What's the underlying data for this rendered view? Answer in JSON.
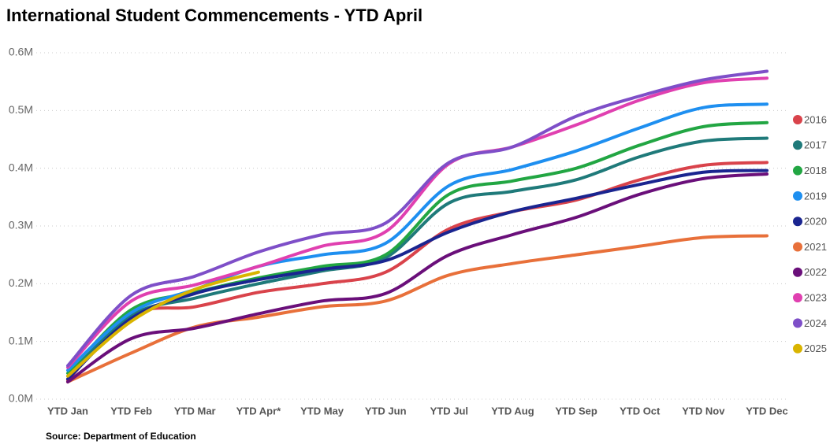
{
  "chart_data": {
    "type": "line",
    "title": "International Student Commencements - YTD April",
    "source": "Source: Department of Education",
    "categories": [
      "YTD Jan",
      "YTD Feb",
      "YTD Mar",
      "YTD Apr*",
      "YTD May",
      "YTD Jun",
      "YTD Jul",
      "YTD Aug",
      "YTD Sep",
      "YTD Oct",
      "YTD Nov",
      "YTD Dec"
    ],
    "ylim": [
      0,
      600000
    ],
    "yticks": [
      {
        "value": 0,
        "label": "0.0M"
      },
      {
        "value": 100000,
        "label": "0.1M"
      },
      {
        "value": 200000,
        "label": "0.2M"
      },
      {
        "value": 300000,
        "label": "0.3M"
      },
      {
        "value": 400000,
        "label": "0.4M"
      },
      {
        "value": 500000,
        "label": "0.5M"
      },
      {
        "value": 600000,
        "label": "0.6M"
      }
    ],
    "grid": true,
    "legend": "right",
    "series": [
      {
        "name": "2016",
        "color": "#d9434b",
        "values": [
          33000,
          145000,
          160000,
          185000,
          200000,
          220000,
          295000,
          325000,
          345000,
          380000,
          405000,
          410000
        ]
      },
      {
        "name": "2017",
        "color": "#1f7a7a",
        "values": [
          40000,
          145000,
          175000,
          200000,
          222000,
          245000,
          340000,
          360000,
          380000,
          420000,
          447000,
          452000
        ]
      },
      {
        "name": "2018",
        "color": "#22a643",
        "values": [
          45000,
          155000,
          185000,
          210000,
          230000,
          250000,
          355000,
          378000,
          400000,
          440000,
          472000,
          479000
        ]
      },
      {
        "name": "2019",
        "color": "#1e8ff0",
        "values": [
          50000,
          150000,
          190000,
          230000,
          250000,
          270000,
          370000,
          398000,
          430000,
          470000,
          505000,
          511000
        ]
      },
      {
        "name": "2020",
        "color": "#1a2590",
        "values": [
          35000,
          140000,
          183000,
          207000,
          225000,
          240000,
          290000,
          325000,
          348000,
          372000,
          393000,
          396000
        ]
      },
      {
        "name": "2021",
        "color": "#e8703a",
        "values": [
          30000,
          80000,
          125000,
          142000,
          160000,
          170000,
          215000,
          235000,
          250000,
          265000,
          280000,
          283000
        ]
      },
      {
        "name": "2022",
        "color": "#6a0f7a",
        "values": [
          30000,
          105000,
          123000,
          148000,
          170000,
          183000,
          250000,
          285000,
          315000,
          355000,
          382000,
          390000
        ]
      },
      {
        "name": "2023",
        "color": "#e040b0",
        "values": [
          55000,
          170000,
          198000,
          230000,
          265000,
          290000,
          408000,
          437000,
          475000,
          518000,
          548000,
          556000
        ]
      },
      {
        "name": "2024",
        "color": "#7e4fc8",
        "values": [
          58000,
          180000,
          213000,
          255000,
          285000,
          305000,
          410000,
          437000,
          490000,
          525000,
          553000,
          568000
        ]
      },
      {
        "name": "2025",
        "color": "#d9b400",
        "values": [
          40000,
          135000,
          190000,
          220000,
          null,
          null,
          null,
          null,
          null,
          null,
          null,
          null
        ]
      }
    ]
  }
}
